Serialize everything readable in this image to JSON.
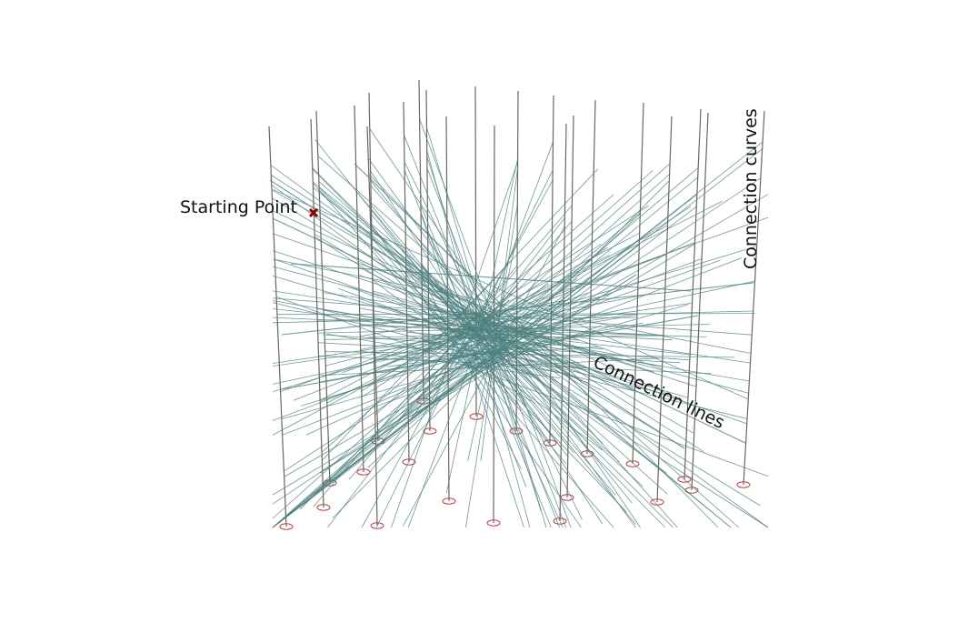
{
  "labels": {
    "starting_point": "Starting Point",
    "connection_curves": "Connection curves",
    "connection_lines": "Connection lines"
  },
  "colors": {
    "pole": "#6e6558",
    "connection_line": "#4f7f80",
    "base_ring": "#b5454a",
    "start_marker": "#8b0000",
    "sphere": "#b9e2ef"
  }
}
